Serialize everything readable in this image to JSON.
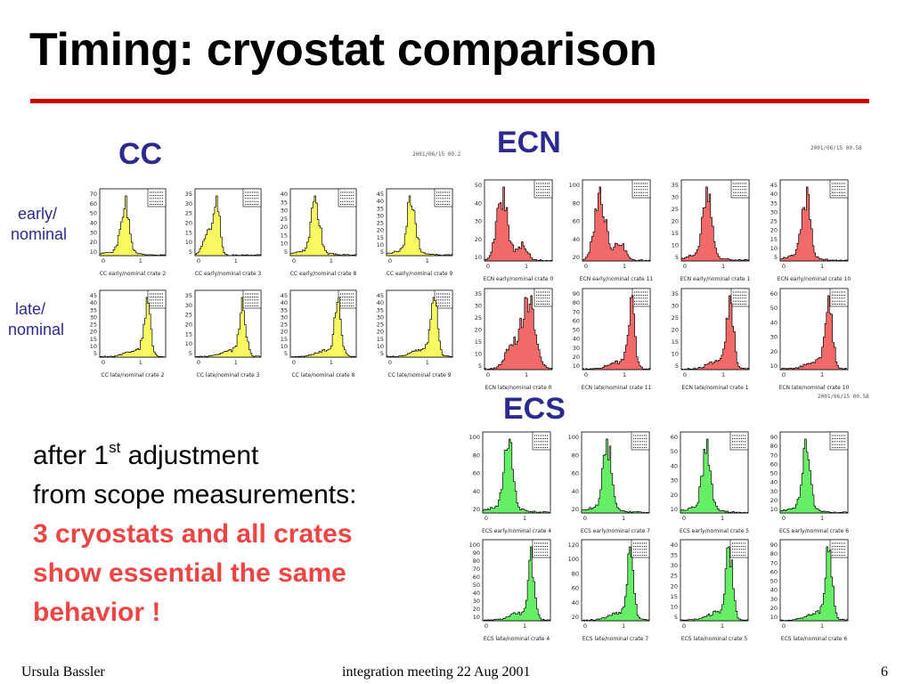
{
  "slide": {
    "title": "Timing: cryostat comparison",
    "accent_color": "#cc0000",
    "label_color": "#2b2b8f",
    "highlight_color": "#ee4444"
  },
  "groups": [
    {
      "id": "cc",
      "label": "CC",
      "fill": "#f8f860",
      "row_labels": [
        [
          "early/",
          "nominal"
        ],
        [
          "late/",
          "nominal"
        ]
      ],
      "stamp": "2001/06/15  00.2",
      "panels": [
        {
          "caption": "CC early/nominal crate 2",
          "yticks": [
            "70",
            "60",
            "50",
            "40",
            "30",
            "20",
            "10"
          ],
          "shape": "early",
          "seed": 1
        },
        {
          "caption": "CC early/nominal crate 3",
          "yticks": [
            "35",
            "30",
            "25",
            "20",
            "15",
            "10",
            "5"
          ],
          "shape": "early_wide",
          "seed": 2
        },
        {
          "caption": "CC early/nominal crate 8",
          "yticks": [
            "40",
            "35",
            "30",
            "25",
            "20",
            "15",
            "10",
            "5"
          ],
          "shape": "early",
          "seed": 3
        },
        {
          "caption": "CC early/nominal crate 9",
          "yticks": [
            "45",
            "40",
            "35",
            "30",
            "25",
            "20",
            "15",
            "10",
            "5"
          ],
          "shape": "early",
          "seed": 4
        },
        {
          "caption": "CC late/nominal crate 2",
          "yticks": [
            "45",
            "40",
            "35",
            "30",
            "25",
            "20",
            "15",
            "10",
            "5"
          ],
          "shape": "late",
          "seed": 5
        },
        {
          "caption": "CC late/nominal crate 3",
          "yticks": [
            "35",
            "30",
            "25",
            "20",
            "15",
            "10",
            "5"
          ],
          "shape": "late",
          "seed": 6
        },
        {
          "caption": "CC late/nominal crate 8",
          "yticks": [
            "45",
            "40",
            "35",
            "30",
            "25",
            "20",
            "15",
            "10",
            "5"
          ],
          "shape": "late",
          "seed": 7
        },
        {
          "caption": "CC late/nominal crate 9",
          "yticks": [
            "45",
            "40",
            "35",
            "30",
            "25",
            "20",
            "15",
            "10",
            "5"
          ],
          "shape": "late",
          "seed": 8
        }
      ]
    },
    {
      "id": "ecn",
      "label": "ECN",
      "fill": "#f06a6a",
      "stamp": "2001/06/15  00.58",
      "stamp2": "2001/06/15  00.58",
      "panels": [
        {
          "caption": "ECN early/nominal crate 0",
          "yticks": [
            "50",
            "40",
            "30",
            "20",
            "10"
          ],
          "shape": "early_broad",
          "seed": 9
        },
        {
          "caption": "ECN early/nominal crate 11",
          "yticks": [
            "100",
            "80",
            "60",
            "40",
            "20"
          ],
          "shape": "early_broad",
          "seed": 10
        },
        {
          "caption": "ECN early/nominal crate 1",
          "yticks": [
            "35",
            "30",
            "25",
            "20",
            "15",
            "10",
            "5"
          ],
          "shape": "early",
          "seed": 11
        },
        {
          "caption": "ECN early/nominal crate 10",
          "yticks": [
            "45",
            "40",
            "35",
            "30",
            "25",
            "20",
            "15",
            "10",
            "5"
          ],
          "shape": "early",
          "seed": 12
        },
        {
          "caption": "ECN late/nominal crate 0",
          "yticks": [
            "35",
            "30",
            "25",
            "20",
            "15",
            "10",
            "5"
          ],
          "shape": "late_broad",
          "seed": 13
        },
        {
          "caption": "ECN late/nominal crate 11",
          "yticks": [
            "90",
            "80",
            "70",
            "60",
            "50",
            "40",
            "30",
            "20",
            "10"
          ],
          "shape": "late",
          "seed": 14
        },
        {
          "caption": "ECN late/nominal crate 1",
          "yticks": [
            "35",
            "30",
            "25",
            "20",
            "15",
            "10",
            "5"
          ],
          "shape": "late",
          "seed": 15
        },
        {
          "caption": "ECN late/nominal crate 10",
          "yticks": [
            "60",
            "50",
            "40",
            "30",
            "20",
            "10"
          ],
          "shape": "late",
          "seed": 16
        }
      ]
    },
    {
      "id": "ecs",
      "label": "ECS",
      "fill": "#66ee66",
      "panels": [
        {
          "caption": "ECS early/nominal crate 4",
          "yticks": [
            "100",
            "80",
            "60",
            "40",
            "20"
          ],
          "shape": "early",
          "seed": 17
        },
        {
          "caption": "ECS early/nominal crate 7",
          "yticks": [
            "100",
            "80",
            "60",
            "40",
            "20"
          ],
          "shape": "early",
          "seed": 18
        },
        {
          "caption": "ECS early/nominal crate 5",
          "yticks": [
            "60",
            "50",
            "40",
            "30",
            "20",
            "10"
          ],
          "shape": "early",
          "seed": 19
        },
        {
          "caption": "ECS early/nominal crate 6",
          "yticks": [
            "90",
            "80",
            "70",
            "60",
            "50",
            "40",
            "30",
            "20",
            "10"
          ],
          "shape": "early",
          "seed": 20
        },
        {
          "caption": "ECS late/nominal crate 4",
          "yticks": [
            "100",
            "90",
            "80",
            "70",
            "60",
            "50",
            "40",
            "30",
            "20",
            "10"
          ],
          "shape": "late",
          "seed": 21
        },
        {
          "caption": "ECS late/nominal crate 7",
          "yticks": [
            "120",
            "100",
            "80",
            "60",
            "40",
            "20"
          ],
          "shape": "late",
          "seed": 22
        },
        {
          "caption": "ECS late/nominal crate 5",
          "yticks": [
            "40",
            "35",
            "30",
            "25",
            "20",
            "15",
            "10",
            "5"
          ],
          "shape": "late",
          "seed": 23
        },
        {
          "caption": "ECS late/nominal crate 6",
          "yticks": [
            "90",
            "80",
            "70",
            "60",
            "50",
            "40",
            "30",
            "20",
            "10"
          ],
          "shape": "late",
          "seed": 24
        }
      ]
    }
  ],
  "body": {
    "line1_pre": "after 1",
    "line1_sup": "st",
    "line1_post": " adjustment",
    "line2": "from scope measurements:",
    "highlight": [
      "3 cryostats and all crates",
      "show essential the same",
      "behavior !"
    ]
  },
  "footer": {
    "author": "Ursula Bassler",
    "event": "integration meeting 22 Aug 2001",
    "page": "6"
  }
}
